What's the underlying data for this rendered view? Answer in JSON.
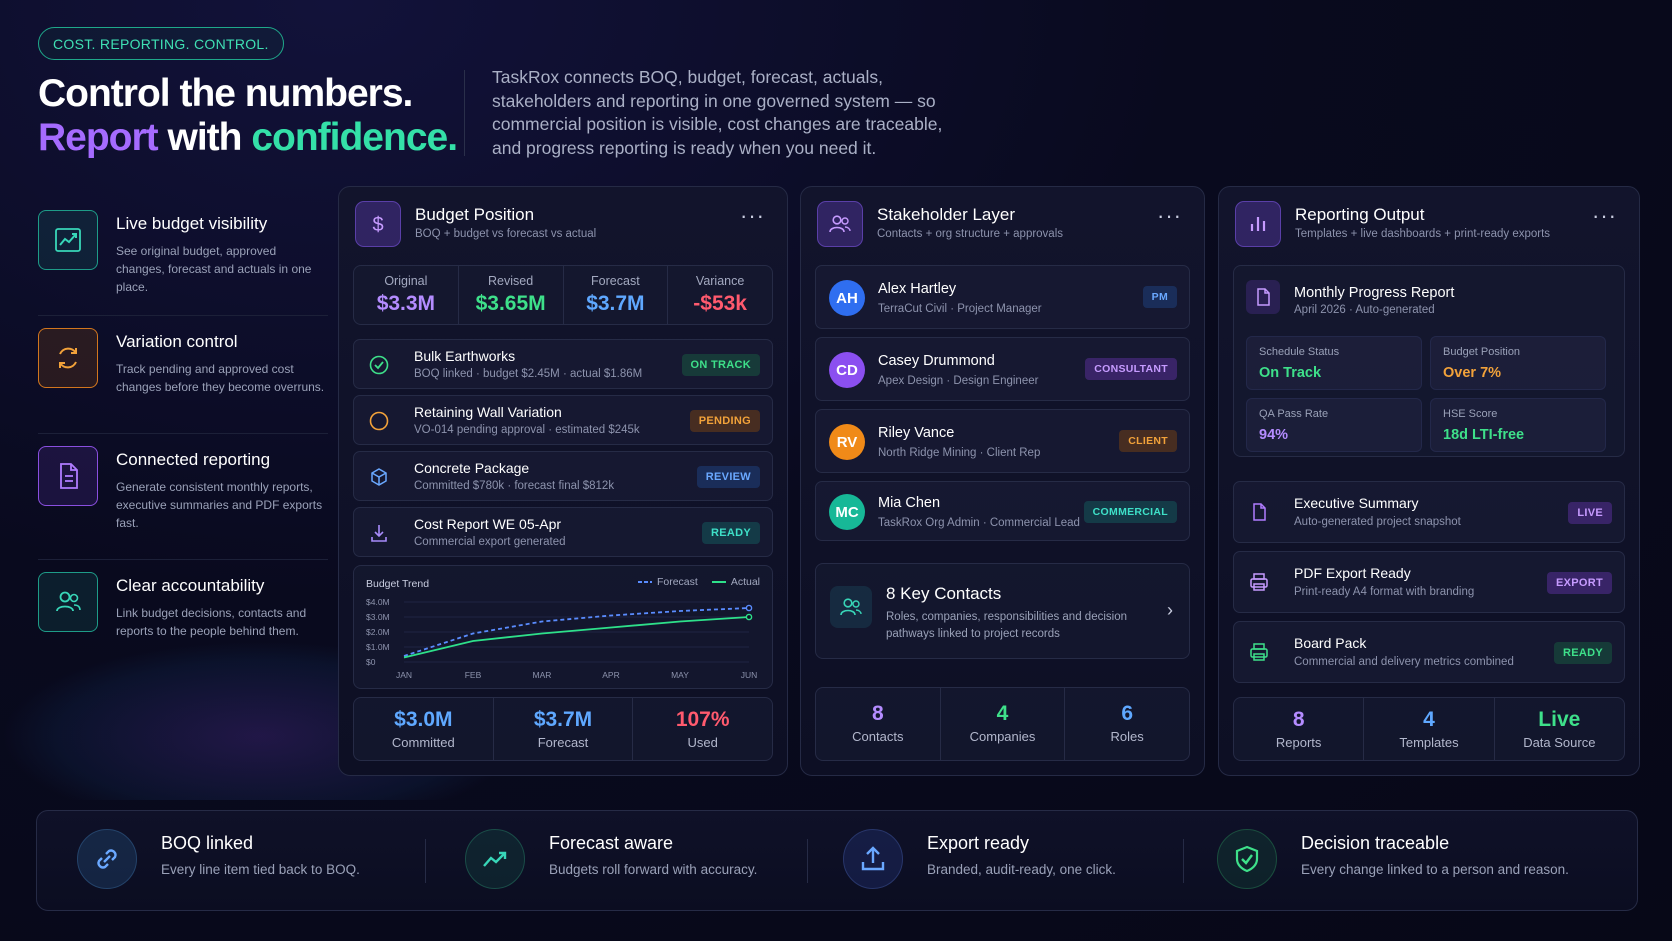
{
  "hero": {
    "pill": "COST. REPORTING. CONTROL.",
    "line1": "Control the numbers.",
    "line2_a": "Report",
    "line2_b": " with ",
    "line2_c": "confidence.",
    "intro": "TaskRox connects BOQ, budget, forecast, actuals, stakeholders and reporting in one governed system — so commercial position is visible, cost changes are traceable, and progress reporting is ready when you need it."
  },
  "features": [
    {
      "title": "Live budget visibility",
      "desc": "See original budget, approved changes, forecast and actuals in one place.",
      "icon": "trend-up-icon"
    },
    {
      "title": "Variation control",
      "desc": "Track pending and approved cost changes before they become overruns.",
      "icon": "refresh-icon"
    },
    {
      "title": "Connected reporting",
      "desc": "Generate consistent monthly reports, executive summaries and PDF exports fast.",
      "icon": "document-icon"
    },
    {
      "title": "Clear accountability",
      "desc": "Link budget decisions, contacts and reports to the people behind them.",
      "icon": "people-icon"
    }
  ],
  "budget": {
    "title": "Budget Position",
    "subtitle": "BOQ + budget vs forecast vs actual",
    "stats": [
      {
        "label": "Original",
        "value": "$3.3M",
        "color": "#b48cff"
      },
      {
        "label": "Revised",
        "value": "$3.65M",
        "color": "#3ee08a"
      },
      {
        "label": "Forecast",
        "value": "$3.7M",
        "color": "#5fa8ff"
      },
      {
        "label": "Variance",
        "value": "-$53k",
        "color": "#ff5a6e"
      }
    ],
    "items": [
      {
        "title": "Bulk Earthworks",
        "sub": "BOQ linked · budget $2.45M · actual $1.86M",
        "badge": "ON TRACK"
      },
      {
        "title": "Retaining Wall Variation",
        "sub": "VO-014 pending approval · estimated $245k",
        "badge": "PENDING"
      },
      {
        "title": "Concrete Package",
        "sub": "Committed $780k · forecast final $812k",
        "badge": "REVIEW"
      },
      {
        "title": "Cost Report WE 05-Apr",
        "sub": "Commercial export generated",
        "badge": "READY"
      }
    ],
    "totals": [
      {
        "value": "$3.0M",
        "label": "Committed",
        "color": "#5fa8ff"
      },
      {
        "value": "$3.7M",
        "label": "Forecast",
        "color": "#5fa8ff"
      },
      {
        "value": "107%",
        "label": "Used",
        "color": "#ff5a6e"
      }
    ]
  },
  "chart_data": {
    "type": "line",
    "title": "Budget Trend",
    "categories": [
      "JAN",
      "FEB",
      "MAR",
      "APR",
      "MAY",
      "JUN"
    ],
    "y_ticks": [
      "$0",
      "$1.0M",
      "$2.0M",
      "$3.0M",
      "$4.0M"
    ],
    "ylim": [
      0,
      4.0
    ],
    "series": [
      {
        "name": "Forecast",
        "color": "#5a8cff",
        "dashed": true,
        "values": [
          0.4,
          1.9,
          2.7,
          3.1,
          3.4,
          3.6
        ]
      },
      {
        "name": "Actual",
        "color": "#2ee08a",
        "dashed": false,
        "values": [
          0.3,
          1.4,
          1.9,
          2.3,
          2.7,
          3.0
        ]
      }
    ]
  },
  "stakeholders": {
    "title": "Stakeholder Layer",
    "subtitle": "Contacts + org structure + approvals",
    "people": [
      {
        "initials": "AH",
        "name": "Alex Hartley",
        "role": "TerraCut Civil · Project Manager",
        "badge": "PM",
        "color": "#2f6ef0"
      },
      {
        "initials": "CD",
        "name": "Casey Drummond",
        "role": "Apex Design · Design Engineer",
        "badge": "CONSULTANT",
        "color": "#8b4ff0"
      },
      {
        "initials": "RV",
        "name": "Riley Vance",
        "role": "North Ridge Mining · Client Rep",
        "badge": "CLIENT",
        "color": "#f08a18"
      },
      {
        "initials": "MC",
        "name": "Mia Chen",
        "role": "TaskRox Org Admin · Commercial Lead",
        "badge": "COMMERCIAL",
        "color": "#17b897"
      }
    ],
    "key_title": "8 Key Contacts",
    "key_sub": "Roles, companies, responsibilities and decision pathways linked to project records",
    "totals": [
      {
        "value": "8",
        "label": "Contacts",
        "color": "#b48cff"
      },
      {
        "value": "4",
        "label": "Companies",
        "color": "#3ee08a"
      },
      {
        "value": "6",
        "label": "Roles",
        "color": "#5fa8ff"
      }
    ]
  },
  "reporting": {
    "title": "Reporting Output",
    "subtitle": "Templates + live dashboards + print-ready exports",
    "monthly_title": "Monthly Progress Report",
    "monthly_sub": "April 2026 · Auto-generated",
    "metrics": [
      {
        "label": "Schedule Status",
        "value": "On Track",
        "color": "#3ee08a"
      },
      {
        "label": "Budget Position",
        "value": "Over 7%",
        "color": "#f2a23a"
      },
      {
        "label": "QA Pass Rate",
        "value": "94%",
        "color": "#b48cff"
      },
      {
        "label": "HSE Score",
        "value": "18d LTI-free",
        "color": "#3ee08a"
      }
    ],
    "items": [
      {
        "title": "Executive Summary",
        "sub": "Auto-generated project snapshot",
        "badge": "LIVE"
      },
      {
        "title": "PDF Export Ready",
        "sub": "Print-ready A4 format with branding",
        "badge": "EXPORT"
      },
      {
        "title": "Board Pack",
        "sub": "Commercial and delivery metrics combined",
        "badge": "READY"
      }
    ],
    "totals": [
      {
        "value": "8",
        "label": "Reports",
        "color": "#b48cff"
      },
      {
        "value": "4",
        "label": "Templates",
        "color": "#5fa8ff"
      },
      {
        "value": "Live",
        "label": "Data Source",
        "color": "#3ee08a"
      }
    ]
  },
  "bottom": [
    {
      "title": "BOQ linked",
      "sub": "Every line item tied back to BOQ."
    },
    {
      "title": "Forecast aware",
      "sub": "Budgets roll forward with accuracy."
    },
    {
      "title": "Export ready",
      "sub": "Branded, audit-ready, one click."
    },
    {
      "title": "Decision traceable",
      "sub": "Every change linked to a person and reason."
    }
  ]
}
